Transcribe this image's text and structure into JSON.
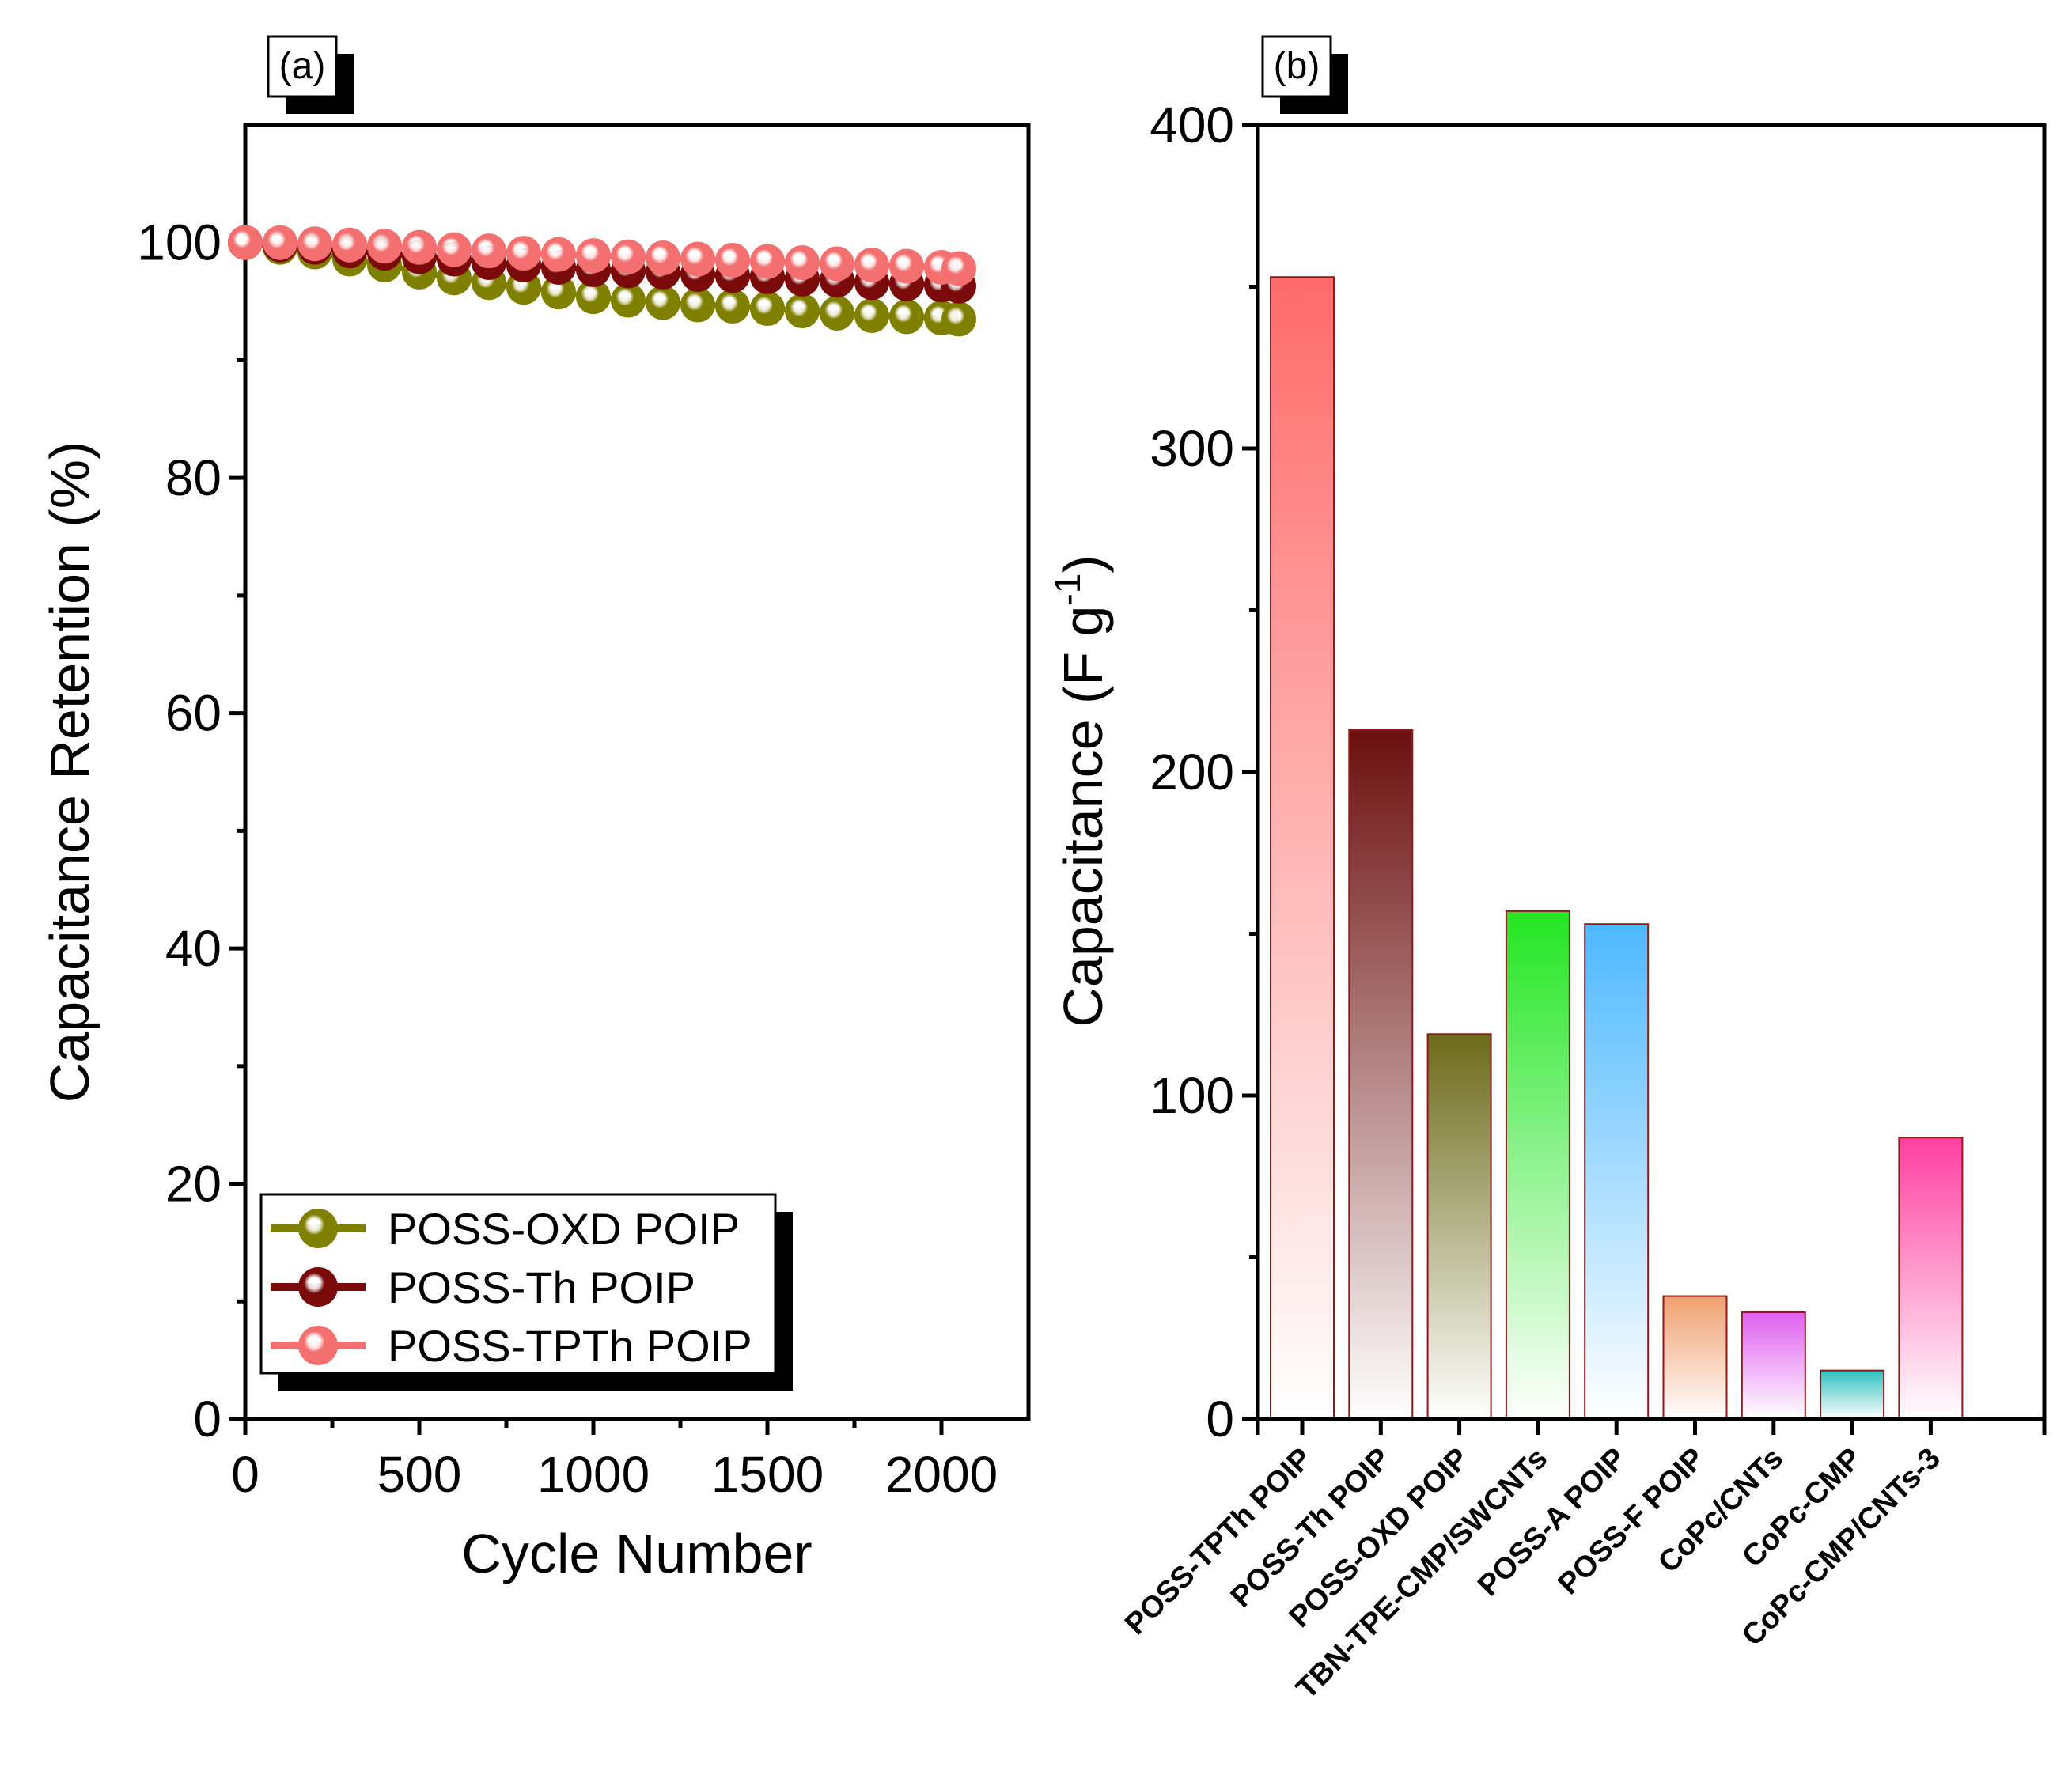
{
  "chart_data": [
    {
      "panel": "(a)",
      "type": "line",
      "xlabel": "Cycle Number",
      "ylabel": "Capacitance Retention (%)",
      "xlim": [
        0,
        2250
      ],
      "ylim": [
        0,
        110
      ],
      "xticks": [
        0,
        500,
        1000,
        1500,
        2000
      ],
      "yticks": [
        0,
        20,
        40,
        60,
        80,
        100
      ],
      "x": [
        0,
        100,
        200,
        300,
        400,
        500,
        600,
        700,
        800,
        900,
        1000,
        1100,
        1200,
        1300,
        1400,
        1500,
        1600,
        1700,
        1800,
        1900,
        2000,
        2050
      ],
      "series": [
        {
          "name": "POSS-OXD POIP",
          "color": "#808000",
          "values": [
            100,
            99.6,
            99.2,
            98.6,
            98.1,
            97.5,
            97.0,
            96.6,
            96.2,
            95.8,
            95.4,
            95.1,
            94.9,
            94.7,
            94.6,
            94.4,
            94.2,
            94.0,
            93.8,
            93.7,
            93.6,
            93.5
          ]
        },
        {
          "name": "POSS-Th POIP",
          "color": "#7b0a0a",
          "values": [
            100,
            99.8,
            99.6,
            99.3,
            99.1,
            98.8,
            98.6,
            98.3,
            98.1,
            97.9,
            97.7,
            97.6,
            97.5,
            97.3,
            97.2,
            97.1,
            96.9,
            96.8,
            96.6,
            96.5,
            96.4,
            96.3
          ]
        },
        {
          "name": "POSS-TPTh POIP",
          "color": "#f47070",
          "values": [
            100,
            100,
            99.9,
            99.8,
            99.7,
            99.6,
            99.4,
            99.3,
            99.1,
            99.0,
            98.9,
            98.8,
            98.7,
            98.6,
            98.5,
            98.4,
            98.3,
            98.2,
            98.1,
            98.0,
            97.9,
            97.8
          ]
        }
      ]
    },
    {
      "panel": "(b)",
      "type": "bar",
      "xlabel": "",
      "ylabel": "Capacitance (F g",
      "ylabel_sup": "-1",
      "ylabel_close": ")",
      "ylim": [
        0,
        400
      ],
      "yticks": [
        0,
        100,
        200,
        300,
        400
      ],
      "categories": [
        "POSS-TPTh POIP",
        "POSS-Th POIP",
        "POSS-OXD POIP",
        "TBN-TPE-CMP/SWCNTs",
        "POSS-A POIP",
        "POSS-F POIP",
        "CoPc/CNTs",
        "CoPc-CMP",
        "CoPc-CMP/CNTs-3"
      ],
      "values": [
        353,
        213,
        119,
        157,
        153,
        38,
        33,
        15,
        87
      ],
      "colors": [
        "#ff6b6b",
        "#6b0f0f",
        "#6b6b1a",
        "#22e622",
        "#4db8ff",
        "#f0a070",
        "#e060f0",
        "#30c0c0",
        "#ff3fa0"
      ]
    }
  ]
}
